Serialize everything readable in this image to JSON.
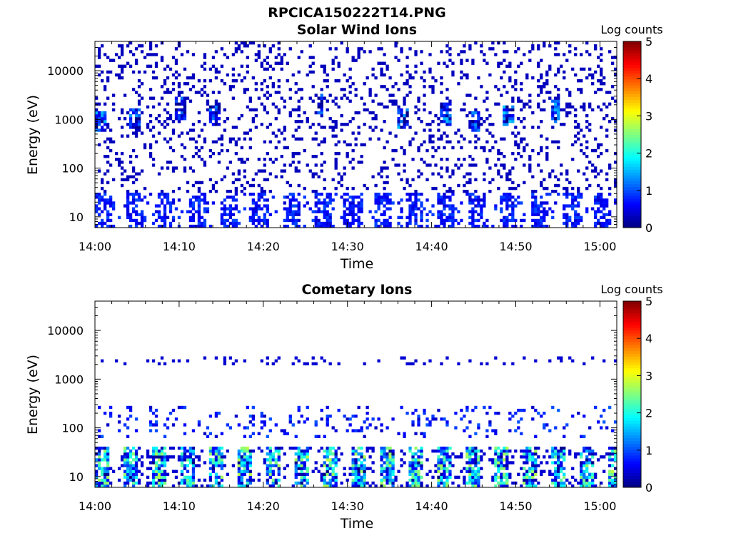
{
  "figure_title": "RPCICA150222T14.PNG",
  "chart_data": [
    {
      "type": "heatmap",
      "title": "Solar Wind Ions",
      "xlabel": "Time",
      "ylabel": "Energy (eV)",
      "x_range": [
        "14:00",
        "15:02"
      ],
      "x_ticks": [
        "14:00",
        "14:10",
        "14:20",
        "14:30",
        "14:40",
        "14:50",
        "15:00"
      ],
      "y_scale": "log",
      "y_range": [
        6,
        40000
      ],
      "y_ticks": [
        "10",
        "100",
        "1000",
        "10000"
      ],
      "y_tick_values": [
        10,
        100,
        1000,
        10000
      ],
      "colorbar": {
        "label": "Log counts",
        "range": [
          0,
          5
        ],
        "ticks": [
          "0",
          "1",
          "2",
          "3",
          "4",
          "5"
        ],
        "colormap": "jet"
      },
      "features": {
        "background_noise_level": 0.15,
        "low_energy_band_ev": [
          6,
          30
        ],
        "low_energy_band_level": 0.6,
        "keV_bursts": [
          {
            "time_min": 0.5,
            "energy_ev": 900,
            "log_counts": 1.6
          },
          {
            "time_min": 4.5,
            "energy_ev": 1000,
            "log_counts": 1.5
          },
          {
            "time_min": 10.0,
            "energy_ev": 1700,
            "log_counts": 1.2
          },
          {
            "time_min": 14.0,
            "energy_ev": 1200,
            "log_counts": 1.4
          },
          {
            "time_min": 26.5,
            "energy_ev": 2000,
            "log_counts": 1.2
          },
          {
            "time_min": 36.5,
            "energy_ev": 1000,
            "log_counts": 1.6
          },
          {
            "time_min": 41.5,
            "energy_ev": 1300,
            "log_counts": 1.6
          },
          {
            "time_min": 45.0,
            "energy_ev": 900,
            "log_counts": 1.4
          },
          {
            "time_min": 49.0,
            "energy_ev": 1200,
            "log_counts": 1.8
          },
          {
            "time_min": 54.5,
            "energy_ev": 1500,
            "log_counts": 1.6
          }
        ]
      }
    },
    {
      "type": "heatmap",
      "title": "Cometary Ions",
      "xlabel": "Time",
      "ylabel": "Energy (eV)",
      "x_range": [
        "14:00",
        "15:02"
      ],
      "x_ticks": [
        "14:00",
        "14:10",
        "14:20",
        "14:30",
        "14:40",
        "14:50",
        "15:00"
      ],
      "y_scale": "log",
      "y_range": [
        6,
        40000
      ],
      "y_ticks": [
        "10",
        "100",
        "1000",
        "10000"
      ],
      "y_tick_values": [
        10,
        100,
        1000,
        10000
      ],
      "colorbar": {
        "label": "Log counts",
        "range": [
          0,
          5
        ],
        "ticks": [
          "0",
          "1",
          "2",
          "3",
          "4",
          "5"
        ],
        "colormap": "jet"
      },
      "features": {
        "sparse_band_ev": [
          2000,
          3000
        ],
        "mid_energy_band_ev": [
          60,
          300
        ],
        "low_energy_band_ev": [
          6,
          40
        ],
        "low_energy_band_peak_log_counts": 2.8
      }
    }
  ]
}
